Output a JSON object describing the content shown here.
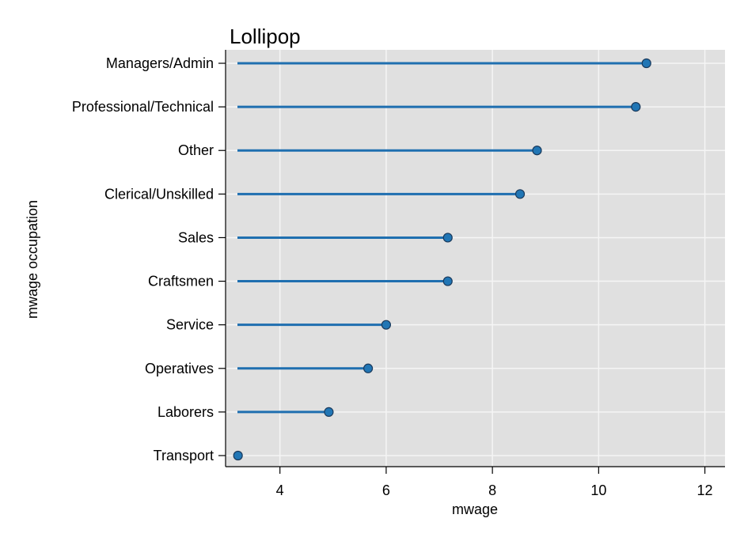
{
  "chart_data": {
    "type": "lollipop",
    "title": "Lollipop",
    "xlabel": "mwage",
    "ylabel": "mwage occupation",
    "xlim": [
      3.2,
      12.2
    ],
    "xticks": [
      4,
      6,
      8,
      10,
      12
    ],
    "xtick_labels": [
      "4",
      "6",
      "8",
      "10",
      "12"
    ],
    "baseline": 3.2,
    "categories": [
      "Managers/Admin",
      "Professional/Technical",
      "Other",
      "Clerical/Unskilled",
      "Sales",
      "Craftsmen",
      "Service",
      "Operatives",
      "Laborers",
      "Transport"
    ],
    "values": [
      10.9,
      10.7,
      8.84,
      8.52,
      7.16,
      7.16,
      6.0,
      5.66,
      4.92,
      3.21
    ],
    "grid": true,
    "colors": {
      "plot_background": "#e0e0e0",
      "gridline": "#f5f5f5",
      "stem": "#1f6fb0",
      "marker_fill": "#2176b5",
      "marker_edge": "#1a3a5c"
    }
  }
}
